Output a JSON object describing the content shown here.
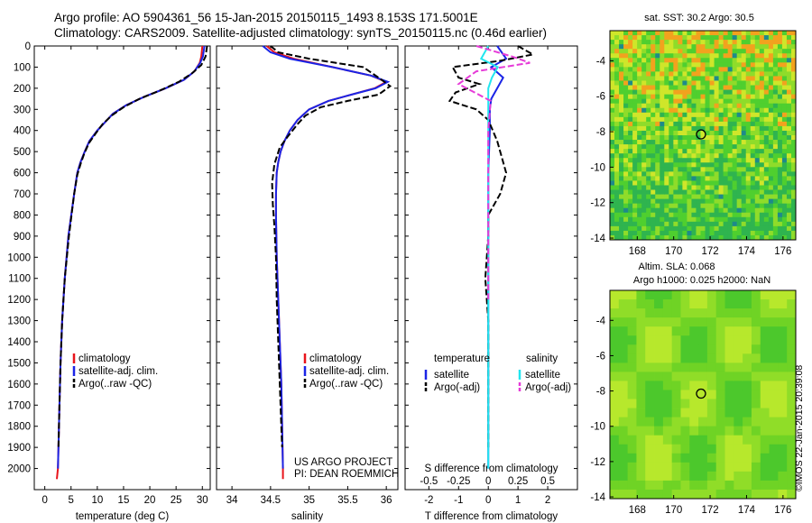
{
  "header": {
    "line1": "Argo profile: AO 5904361_56 15-Jan-2015 20150115_1493 8.153S 171.5001E",
    "line2": "Climatology: CARS2009. Satellite-adjusted climatology: synTS_20150115.nc (0.46d earlier)"
  },
  "depth_ticks": [
    "0",
    "100",
    "200",
    "300",
    "400",
    "500",
    "600",
    "700",
    "800",
    "900",
    "1000",
    "1100",
    "1200",
    "1300",
    "1400",
    "1500",
    "1600",
    "1700",
    "1800",
    "1900",
    "2000"
  ],
  "colors": {
    "climatology": "#e8141b",
    "satellite": "#1a24e6",
    "argo": "#000000",
    "sal_satellite": "#22e6ef",
    "sal_argo": "#e63bd8"
  },
  "chart_data": [
    {
      "type": "line",
      "xlabel": "temperature (deg C)",
      "xticks": [
        "0",
        "5",
        "10",
        "15",
        "20",
        "25",
        "30"
      ],
      "xlim": [
        -2,
        31.5
      ],
      "ylim": [
        2100,
        0
      ],
      "legend": {
        "climatology": "climatology",
        "satellite": "satellite-adj. clim.",
        "argo": "Argo(..raw -QC)"
      },
      "series": [
        {
          "name": "climatology",
          "x": [
            30,
            29.8,
            29.5,
            28.5,
            26.5,
            23,
            19,
            15.5,
            13,
            11.5,
            10,
            8.5,
            7.6,
            6.8,
            6.2,
            5.6,
            4.5,
            3.8,
            3.3,
            3.0,
            2.8,
            2.6,
            2.5,
            2.3
          ],
          "y": [
            0,
            50,
            80,
            120,
            160,
            200,
            240,
            280,
            320,
            360,
            400,
            450,
            500,
            550,
            600,
            700,
            900,
            1100,
            1300,
            1500,
            1700,
            1900,
            2000,
            2050
          ]
        },
        {
          "name": "satellite-adj. clim.",
          "x": [
            30.4,
            30.1,
            29.6,
            28.5,
            26.5,
            23,
            19,
            15.5,
            13,
            11.5,
            10,
            8.5,
            7.6,
            6.8,
            6.2,
            5.6,
            4.5,
            3.8,
            3.3,
            3.0,
            2.8,
            2.6,
            2.5
          ],
          "y": [
            0,
            50,
            80,
            120,
            160,
            200,
            240,
            280,
            320,
            360,
            400,
            450,
            500,
            550,
            600,
            700,
            900,
            1100,
            1300,
            1500,
            1700,
            1900,
            2000
          ]
        },
        {
          "name": "Argo(..raw -QC)",
          "x": [
            30.9,
            30.6,
            29.8,
            28,
            25.5,
            22,
            18,
            15,
            12.7,
            11,
            9.8,
            8.4,
            7.5,
            6.8,
            6.2,
            5.6,
            4.6,
            3.8,
            3.3,
            3.0,
            2.8,
            2.6
          ],
          "y": [
            0,
            50,
            90,
            130,
            170,
            210,
            250,
            290,
            330,
            370,
            410,
            460,
            510,
            560,
            610,
            700,
            900,
            1100,
            1300,
            1500,
            1700,
            1900
          ]
        }
      ]
    },
    {
      "type": "line",
      "xlabel": "salinity",
      "xticks": [
        "34",
        "34.5",
        "35",
        "35.5",
        "36"
      ],
      "xlim": [
        33.8,
        36.15
      ],
      "ylim": [
        2100,
        0
      ],
      "legend": {
        "climatology": "climatology",
        "satellite": "satellite-adj. clim.",
        "argo": "Argo(..raw -QC)"
      },
      "annotation": [
        "US ARGO PROJECT",
        "PI: DEAN ROEMMICH"
      ],
      "series": [
        {
          "name": "climatology",
          "x": [
            34.45,
            34.55,
            34.8,
            35.3,
            35.8,
            36.0,
            35.85,
            35.55,
            35.25,
            35.0,
            34.85,
            34.75,
            34.68,
            34.63,
            34.6,
            34.58,
            34.57,
            34.57,
            34.58,
            34.6,
            34.62,
            34.64,
            34.65,
            34.66,
            34.66
          ],
          "y": [
            0,
            30,
            60,
            100,
            140,
            170,
            200,
            230,
            260,
            300,
            350,
            400,
            450,
            500,
            550,
            600,
            700,
            800,
            1000,
            1200,
            1400,
            1600,
            1800,
            2000,
            2050
          ]
        },
        {
          "name": "satellite-adj. clim.",
          "x": [
            34.4,
            34.5,
            34.75,
            35.3,
            35.8,
            36.02,
            35.86,
            35.55,
            35.25,
            35.0,
            34.85,
            34.75,
            34.68,
            34.63,
            34.6,
            34.58,
            34.57,
            34.57,
            34.58,
            34.6,
            34.62,
            34.64,
            34.65,
            34.66
          ],
          "y": [
            0,
            30,
            60,
            100,
            140,
            170,
            200,
            230,
            260,
            300,
            350,
            400,
            450,
            500,
            550,
            600,
            700,
            800,
            1000,
            1200,
            1400,
            1600,
            1800,
            2000
          ]
        },
        {
          "name": "Argo(..raw -QC)",
          "x": [
            34.5,
            34.6,
            35.0,
            35.7,
            35.9,
            36.05,
            35.9,
            35.5,
            35.15,
            34.95,
            34.85,
            34.72,
            34.62,
            34.55,
            34.52,
            34.53,
            34.55,
            34.57,
            34.58,
            34.6,
            34.62,
            34.64,
            34.65
          ],
          "y": [
            0,
            30,
            60,
            100,
            150,
            190,
            230,
            260,
            290,
            330,
            370,
            430,
            480,
            560,
            650,
            750,
            850,
            1000,
            1200,
            1400,
            1600,
            1800,
            1900
          ]
        }
      ]
    },
    {
      "type": "line",
      "xlabel": "T difference from climatology",
      "xlabel_top": "S difference from climatology",
      "xticks": [
        "-2",
        "-1",
        "0",
        "1",
        "2"
      ],
      "xticks_top": [
        "-0.5",
        "-0.25",
        "0",
        "0.25",
        "0.5"
      ],
      "xlim": [
        -2.8,
        3.0
      ],
      "ylim": [
        2100,
        0
      ],
      "legend": {
        "temperature": "temperature",
        "salinity": "salinity",
        "satellite": "satellite",
        "argo": "Argo(-adj)"
      },
      "series": [
        {
          "name": "satellite",
          "group": "temperature",
          "x": [
            0.3,
            0.6,
            0.1,
            0.5,
            0.3,
            0.1,
            0.05,
            0.05,
            0.0,
            0.0,
            0.0,
            0.0,
            0.0
          ],
          "y": [
            0,
            60,
            100,
            150,
            200,
            250,
            300,
            400,
            600,
            900,
            1200,
            1600,
            2000
          ]
        },
        {
          "name": "Argo(-adj)",
          "group": "temperature",
          "x": [
            1.0,
            1.5,
            0.4,
            -1.2,
            -1.0,
            -0.3,
            -1.1,
            -1.3,
            -0.4,
            0.0,
            0.3,
            0.6,
            0.4,
            0.0,
            0.0,
            -0.1,
            0.0,
            0.0,
            0.0,
            0.0
          ],
          "y": [
            0,
            40,
            70,
            100,
            150,
            180,
            220,
            260,
            300,
            350,
            450,
            600,
            700,
            800,
            900,
            1100,
            1300,
            1500,
            1700,
            1900
          ]
        },
        {
          "name": "satellite",
          "group": "salinity",
          "x": [
            0.0,
            -0.06,
            0.08,
            0.03,
            0.0,
            0.0,
            0.0,
            0.0,
            0.0,
            0.0
          ],
          "y": [
            0,
            60,
            100,
            150,
            200,
            300,
            500,
            900,
            1400,
            2000
          ]
        },
        {
          "name": "Argo(-adj)",
          "group": "salinity",
          "x": [
            -0.1,
            0.2,
            0.35,
            -0.1,
            -0.25,
            0.02,
            0.0,
            0.0,
            0.0
          ],
          "y": [
            0,
            50,
            80,
            120,
            180,
            260,
            400,
            800,
            1200
          ]
        }
      ]
    }
  ],
  "maps": [
    {
      "title": "sat. SST: 30.2  Argo: 30.5",
      "xticks": [
        "168",
        "170",
        "172",
        "174",
        "176"
      ],
      "yticks": [
        "-4",
        "-6",
        "-8",
        "-10",
        "-12",
        "-14"
      ],
      "xlim": [
        166.5,
        176.7
      ],
      "ylim": [
        -14.1,
        -2.3
      ],
      "marker": {
        "lon": 171.5,
        "lat": -8.15
      }
    },
    {
      "title1": "Altim. SLA: 0.068",
      "title2": "Argo h1000: 0.025 h2000: NaN",
      "xticks": [
        "168",
        "170",
        "172",
        "174",
        "176"
      ],
      "yticks": [
        "-4",
        "-6",
        "-8",
        "-10",
        "-12",
        "-14"
      ],
      "xlim": [
        166.5,
        176.7
      ],
      "ylim": [
        -14.1,
        -2.3
      ],
      "marker": {
        "lon": 171.5,
        "lat": -8.15
      }
    }
  ],
  "stamp": "©IMOS 22-Jan-2015 20:39:08"
}
